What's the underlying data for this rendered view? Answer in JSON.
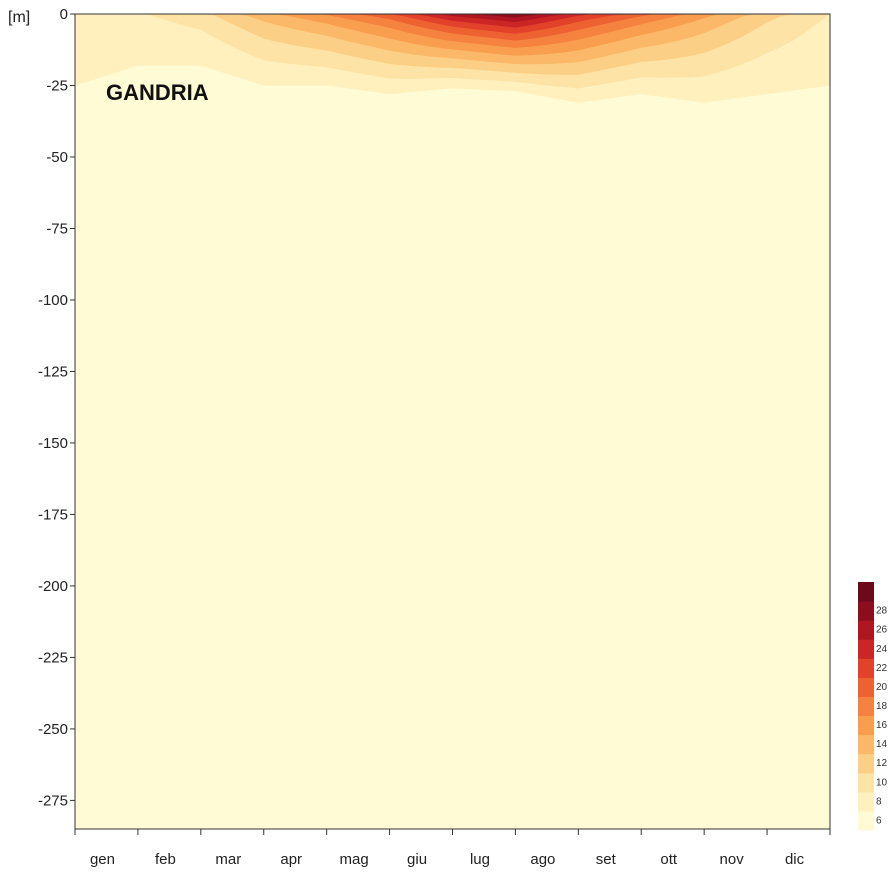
{
  "chart_data": {
    "type": "heatmap",
    "title": "GANDRIA",
    "ylabel": "[m]",
    "xlabel": "",
    "x_categories": [
      "gen",
      "feb",
      "mar",
      "apr",
      "mag",
      "giu",
      "lug",
      "ago",
      "set",
      "ott",
      "nov",
      "dic"
    ],
    "y_ticks": [
      0,
      -25,
      -50,
      -75,
      -100,
      -125,
      -150,
      -175,
      -200,
      -225,
      -250,
      -275
    ],
    "ylim": [
      -285,
      0
    ],
    "colorbar": {
      "levels": [
        6,
        8,
        10,
        12,
        14,
        16,
        18,
        20,
        22,
        24,
        26,
        28
      ],
      "colors": [
        "#fffbd4",
        "#fff0bd",
        "#fde3a5",
        "#fccf86",
        "#fbb868",
        "#f99e4f",
        "#f5823f",
        "#ee6232",
        "#e2412a",
        "#cc2526",
        "#b01622",
        "#8c0d1e",
        "#6b0a1a"
      ]
    },
    "depth_profile": {
      "months": [
        0,
        1,
        2,
        3,
        4,
        5,
        6,
        7,
        8,
        9,
        10,
        11,
        12
      ],
      "thermocline_depth_m": [
        25,
        18,
        18,
        25,
        25,
        28,
        26,
        27,
        31,
        28,
        31,
        28,
        25
      ],
      "surface_temp_c": [
        8,
        7.8,
        9.5,
        13.5,
        16.5,
        20,
        25.5,
        28.5,
        23,
        19,
        15,
        11,
        8
      ]
    }
  }
}
